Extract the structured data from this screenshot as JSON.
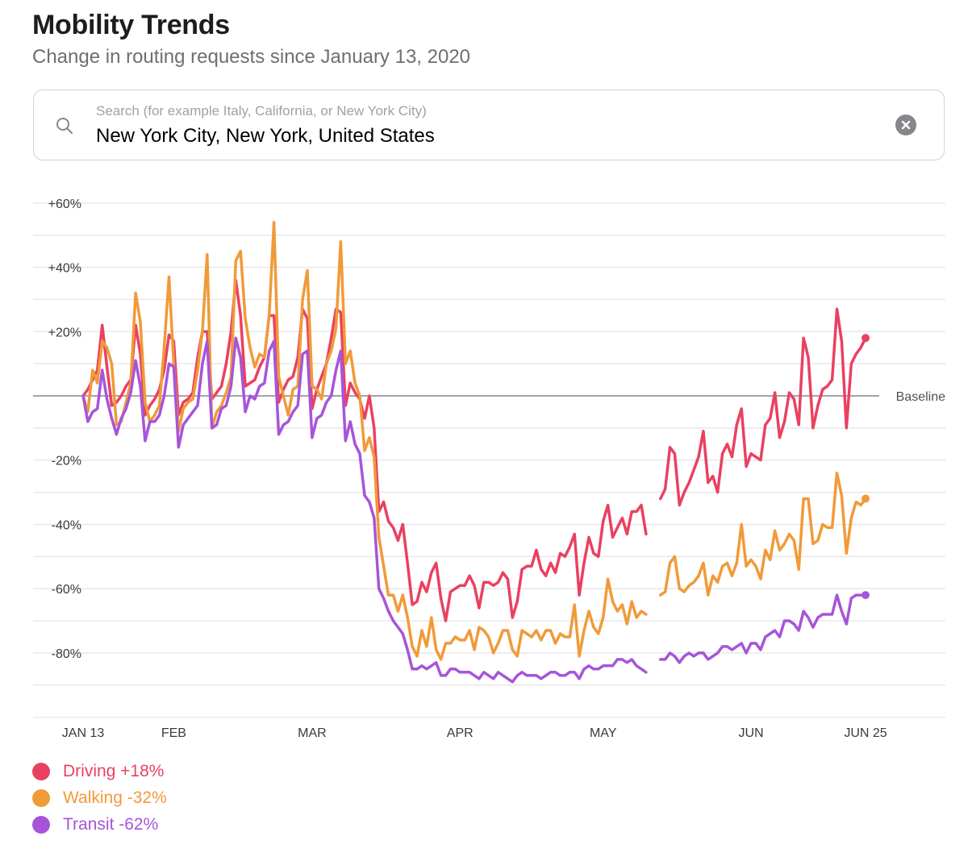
{
  "header": {
    "title": "Mobility Trends",
    "subtitle": "Change in routing requests since January 13, 2020"
  },
  "search": {
    "placeholder": "Search (for example Italy, California, or New York City)",
    "value": "New York City, New York, United States",
    "icon": "search-icon",
    "clear_icon": "clear-icon"
  },
  "legend": [
    {
      "label": "Driving +18%",
      "color": "#ea4160"
    },
    {
      "label": "Walking -32%",
      "color": "#f19a38"
    },
    {
      "label": "Transit -62%",
      "color": "#a655da"
    }
  ],
  "chart_data": {
    "type": "line",
    "ylabel": "",
    "xlabel": "",
    "ylim": [
      -100,
      60
    ],
    "y_ticks": [
      "+60%",
      "+40%",
      "+20%",
      "-20%",
      "-40%",
      "-60%",
      "-80%"
    ],
    "y_tick_values": [
      60,
      40,
      20,
      -20,
      -40,
      -60,
      -80
    ],
    "grid": true,
    "grid_step": 10,
    "baseline": {
      "value": 0,
      "label": "Baseline"
    },
    "x_ticks": [
      {
        "label": "JAN 13",
        "date": "2020-01-13"
      },
      {
        "label": "FEB",
        "date": "2020-02-01"
      },
      {
        "label": "MAR",
        "date": "2020-03-01"
      },
      {
        "label": "APR",
        "date": "2020-04-01"
      },
      {
        "label": "MAY",
        "date": "2020-05-01"
      },
      {
        "label": "JUN",
        "date": "2020-06-01"
      },
      {
        "label": "JUN 25",
        "date": "2020-06-25"
      }
    ],
    "x": [
      "2020-01-13",
      "2020-01-14",
      "2020-01-15",
      "2020-01-16",
      "2020-01-17",
      "2020-01-18",
      "2020-01-19",
      "2020-01-20",
      "2020-01-21",
      "2020-01-22",
      "2020-01-23",
      "2020-01-24",
      "2020-01-25",
      "2020-01-26",
      "2020-01-27",
      "2020-01-28",
      "2020-01-29",
      "2020-01-30",
      "2020-01-31",
      "2020-02-01",
      "2020-02-02",
      "2020-02-03",
      "2020-02-04",
      "2020-02-05",
      "2020-02-06",
      "2020-02-07",
      "2020-02-08",
      "2020-02-09",
      "2020-02-10",
      "2020-02-11",
      "2020-02-12",
      "2020-02-13",
      "2020-02-14",
      "2020-02-15",
      "2020-02-16",
      "2020-02-17",
      "2020-02-18",
      "2020-02-19",
      "2020-02-20",
      "2020-02-21",
      "2020-02-22",
      "2020-02-23",
      "2020-02-24",
      "2020-02-25",
      "2020-02-26",
      "2020-02-27",
      "2020-02-28",
      "2020-02-29",
      "2020-03-01",
      "2020-03-02",
      "2020-03-03",
      "2020-03-04",
      "2020-03-05",
      "2020-03-06",
      "2020-03-07",
      "2020-03-08",
      "2020-03-09",
      "2020-03-10",
      "2020-03-11",
      "2020-03-12",
      "2020-03-13",
      "2020-03-14",
      "2020-03-15",
      "2020-03-16",
      "2020-03-17",
      "2020-03-18",
      "2020-03-19",
      "2020-03-20",
      "2020-03-21",
      "2020-03-22",
      "2020-03-23",
      "2020-03-24",
      "2020-03-25",
      "2020-03-26",
      "2020-03-27",
      "2020-03-28",
      "2020-03-29",
      "2020-03-30",
      "2020-03-31",
      "2020-04-01",
      "2020-04-02",
      "2020-04-03",
      "2020-04-04",
      "2020-04-05",
      "2020-04-06",
      "2020-04-07",
      "2020-04-08",
      "2020-04-09",
      "2020-04-10",
      "2020-04-11",
      "2020-04-12",
      "2020-04-13",
      "2020-04-14",
      "2020-04-15",
      "2020-04-16",
      "2020-04-17",
      "2020-04-18",
      "2020-04-19",
      "2020-04-20",
      "2020-04-21",
      "2020-04-22",
      "2020-04-23",
      "2020-04-24",
      "2020-04-25",
      "2020-04-26",
      "2020-04-27",
      "2020-04-28",
      "2020-04-29",
      "2020-04-30",
      "2020-05-01",
      "2020-05-02",
      "2020-05-03",
      "2020-05-04",
      "2020-05-05",
      "2020-05-06",
      "2020-05-07",
      "2020-05-08",
      "2020-05-09",
      "2020-05-10",
      "2020-05-11",
      "2020-05-12",
      "2020-05-13",
      "2020-05-14",
      "2020-05-15",
      "2020-05-16",
      "2020-05-17",
      "2020-05-18",
      "2020-05-19",
      "2020-05-20",
      "2020-05-21",
      "2020-05-22",
      "2020-05-23",
      "2020-05-24",
      "2020-05-25",
      "2020-05-26",
      "2020-05-27",
      "2020-05-28",
      "2020-05-29",
      "2020-05-30",
      "2020-05-31",
      "2020-06-01",
      "2020-06-02",
      "2020-06-03",
      "2020-06-04",
      "2020-06-05",
      "2020-06-06",
      "2020-06-07",
      "2020-06-08",
      "2020-06-09",
      "2020-06-10",
      "2020-06-11",
      "2020-06-12",
      "2020-06-13",
      "2020-06-14",
      "2020-06-15",
      "2020-06-16",
      "2020-06-17",
      "2020-06-18",
      "2020-06-19",
      "2020-06-20",
      "2020-06-21",
      "2020-06-22",
      "2020-06-23",
      "2020-06-24",
      "2020-06-25"
    ],
    "series": [
      {
        "name": "Driving",
        "color": "#ea4160",
        "values": [
          0,
          2,
          5,
          8,
          22,
          9,
          -3,
          -2,
          0,
          3,
          5,
          22,
          13,
          -6,
          -3,
          -1,
          2,
          8,
          19,
          17,
          -6,
          -2,
          -1,
          1,
          12,
          20,
          20,
          -1,
          1,
          3,
          10,
          20,
          36,
          25,
          3,
          4,
          5,
          9,
          12,
          25,
          25,
          -2,
          2,
          5,
          6,
          12,
          27,
          24,
          -4,
          2,
          6,
          10,
          18,
          27,
          26,
          -3,
          4,
          1,
          -1,
          -7,
          0,
          -10,
          -36,
          -33,
          -39,
          -41,
          -45,
          -40,
          -52,
          -65,
          -64,
          -58,
          -61,
          -55,
          -52,
          -63,
          -70,
          -61,
          -60,
          -59,
          -59,
          -56,
          -59,
          -66,
          -58,
          -58,
          -59,
          -58,
          -55,
          -57,
          -69,
          -64,
          -54,
          -53,
          -53,
          -48,
          -54,
          -56,
          -52,
          -55,
          -49,
          -50,
          -47,
          -43,
          -62,
          -52,
          -44,
          -49,
          -50,
          -39,
          -34,
          -44,
          -41,
          -38,
          -43,
          -36,
          -36,
          -34,
          -43,
          null,
          null,
          -32,
          -29,
          -16,
          -18,
          -34,
          -30,
          -27,
          -23,
          -19,
          -11,
          -27,
          -25,
          -30,
          -18,
          -15,
          -19,
          -9,
          -4,
          -22,
          -18,
          -19,
          -20,
          -9,
          -7,
          1,
          -13,
          -8,
          1,
          -1,
          -9,
          18,
          12,
          -10,
          -3,
          2,
          3,
          5,
          27,
          17,
          -10,
          10,
          13,
          15,
          18
        ]
      },
      {
        "name": "Walking",
        "color": "#f19a38",
        "values": [
          0,
          -5,
          8,
          4,
          17,
          15,
          10,
          -9,
          -8,
          -2,
          4,
          32,
          23,
          -2,
          -8,
          -6,
          -3,
          15,
          37,
          10,
          -11,
          -4,
          -2,
          -1,
          8,
          20,
          44,
          -10,
          -5,
          -3,
          1,
          6,
          42,
          45,
          24,
          15,
          9,
          13,
          12,
          25,
          54,
          6,
          0,
          -6,
          2,
          3,
          30,
          39,
          3,
          2,
          -1,
          10,
          14,
          21,
          48,
          10,
          14,
          4,
          0,
          -17,
          -13,
          -19,
          -44,
          -53,
          -62,
          -62,
          -67,
          -62,
          -69,
          -78,
          -81,
          -73,
          -78,
          -69,
          -79,
          -82,
          -77,
          -77,
          -75,
          -76,
          -76,
          -73,
          -79,
          -72,
          -73,
          -75,
          -80,
          -77,
          -73,
          -73,
          -79,
          -81,
          -73,
          -74,
          -75,
          -73,
          -76,
          -73,
          -73,
          -77,
          -74,
          -75,
          -75,
          -65,
          -81,
          -73,
          -67,
          -72,
          -74,
          -69,
          -57,
          -64,
          -67,
          -65,
          -71,
          -64,
          -69,
          -67,
          -68,
          null,
          null,
          -62,
          -61,
          -52,
          -50,
          -60,
          -61,
          -59,
          -58,
          -56,
          -52,
          -62,
          -56,
          -58,
          -53,
          -52,
          -56,
          -52,
          -40,
          -53,
          -51,
          -53,
          -57,
          -48,
          -51,
          -42,
          -48,
          -46,
          -43,
          -45,
          -54,
          -32,
          -32,
          -46,
          -45,
          -40,
          -41,
          -41,
          -24,
          -31,
          -49,
          -38,
          -33,
          -34,
          -32
        ]
      },
      {
        "name": "Transit",
        "color": "#a655da",
        "values": [
          0,
          -8,
          -5,
          -4,
          8,
          -1,
          -7,
          -12,
          -7,
          -4,
          1,
          11,
          3,
          -14,
          -8,
          -8,
          -6,
          0,
          10,
          9,
          -16,
          -9,
          -7,
          -5,
          -3,
          10,
          17,
          -10,
          -9,
          -4,
          -3,
          3,
          18,
          12,
          -5,
          0,
          -1,
          3,
          4,
          14,
          17,
          -12,
          -9,
          -8,
          -5,
          -3,
          13,
          14,
          -13,
          -7,
          -6,
          -2,
          0,
          8,
          14,
          -14,
          -8,
          -15,
          -18,
          -31,
          -33,
          -38,
          -60,
          -63,
          -67,
          -70,
          -72,
          -74,
          -79,
          -85,
          -85,
          -84,
          -85,
          -84,
          -83,
          -87,
          -87,
          -85,
          -85,
          -86,
          -86,
          -86,
          -87,
          -88,
          -86,
          -87,
          -88,
          -86,
          -87,
          -88,
          -89,
          -87,
          -86,
          -87,
          -87,
          -87,
          -88,
          -87,
          -86,
          -86,
          -87,
          -87,
          -86,
          -86,
          -88,
          -85,
          -84,
          -85,
          -85,
          -84,
          -84,
          -84,
          -82,
          -82,
          -83,
          -82,
          -84,
          -85,
          -86,
          null,
          null,
          -82,
          -82,
          -80,
          -81,
          -83,
          -81,
          -80,
          -81,
          -80,
          -80,
          -82,
          -81,
          -80,
          -78,
          -78,
          -79,
          -78,
          -77,
          -80,
          -77,
          -77,
          -79,
          -75,
          -74,
          -73,
          -75,
          -70,
          -70,
          -71,
          -73,
          -67,
          -69,
          -72,
          -69,
          -68,
          -68,
          -68,
          -62,
          -67,
          -71,
          -63,
          -62,
          -62,
          -62
        ]
      }
    ],
    "legend_placement": "bottom-left"
  }
}
